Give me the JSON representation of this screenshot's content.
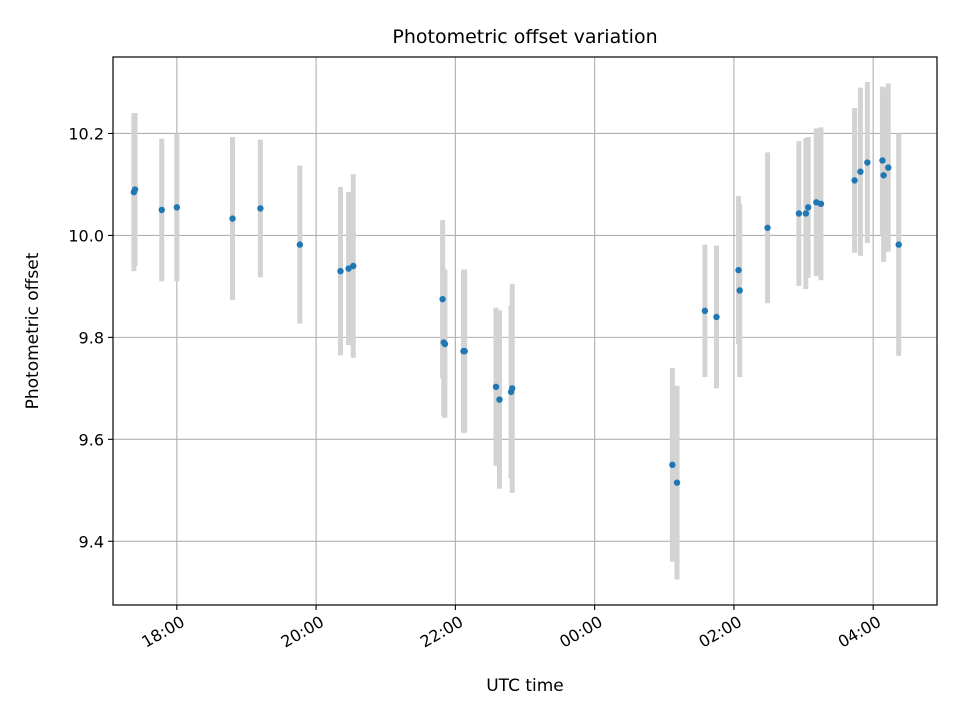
{
  "chart_data": {
    "type": "scatter",
    "title": "Photometric offset variation",
    "xlabel": "UTC time",
    "ylabel": "Photometric offset",
    "x_axis_kind": "time",
    "xlim": [
      "17:05",
      "04:55"
    ],
    "ylim": [
      9.275,
      10.35
    ],
    "grid": true,
    "x_ticks": [
      "18:00",
      "20:00",
      "22:00",
      "00:00",
      "02:00",
      "04:00"
    ],
    "y_ticks": [
      9.4,
      9.6,
      9.8,
      10.0,
      10.2
    ],
    "y_tick_labels": [
      "9.4",
      "9.6",
      "9.8",
      "10.0",
      "10.2"
    ],
    "errorbar_color": "#d3d3d3",
    "marker_color": "#1f77b4",
    "series": [
      {
        "points": [
          {
            "x": "17:23",
            "y": 10.085,
            "err": 0.155
          },
          {
            "x": "17:24",
            "y": 10.09,
            "err": 0.15
          },
          {
            "x": "17:47",
            "y": 10.05,
            "err": 0.14
          },
          {
            "x": "17:60",
            "y": 10.055,
            "err": 0.145
          },
          {
            "x": "18:48",
            "y": 10.033,
            "err": 0.16
          },
          {
            "x": "19:12",
            "y": 10.053,
            "err": 0.135
          },
          {
            "x": "19:46",
            "y": 9.982,
            "err": 0.155
          },
          {
            "x": "20:21",
            "y": 9.93,
            "err": 0.165
          },
          {
            "x": "20:28",
            "y": 9.935,
            "err": 0.15
          },
          {
            "x": "20:32",
            "y": 9.94,
            "err": 0.18
          },
          {
            "x": "21:49",
            "y": 9.875,
            "err": 0.155
          },
          {
            "x": "21:50",
            "y": 9.79,
            "err": 0.145
          },
          {
            "x": "21:51",
            "y": 9.787,
            "err": 0.145
          },
          {
            "x": "22:07",
            "y": 9.773,
            "err": 0.16
          },
          {
            "x": "22:08",
            "y": 9.773,
            "err": 0.16
          },
          {
            "x": "22:35",
            "y": 9.703,
            "err": 0.155
          },
          {
            "x": "22:38",
            "y": 9.678,
            "err": 0.175
          },
          {
            "x": "22:48",
            "y": 9.693,
            "err": 0.17
          },
          {
            "x": "22:49",
            "y": 9.7,
            "err": 0.205
          },
          {
            "x": "01:07",
            "y": 9.55,
            "err": 0.19
          },
          {
            "x": "01:11",
            "y": 9.515,
            "err": 0.19
          },
          {
            "x": "01:35",
            "y": 9.852,
            "err": 0.13
          },
          {
            "x": "01:45",
            "y": 9.84,
            "err": 0.14
          },
          {
            "x": "02:04",
            "y": 9.932,
            "err": 0.145
          },
          {
            "x": "02:05",
            "y": 9.892,
            "err": 0.17
          },
          {
            "x": "02:29",
            "y": 10.015,
            "err": 0.148
          },
          {
            "x": "02:56",
            "y": 10.043,
            "err": 0.142
          },
          {
            "x": "03:02",
            "y": 10.043,
            "err": 0.148
          },
          {
            "x": "03:04",
            "y": 10.055,
            "err": 0.138
          },
          {
            "x": "03:11",
            "y": 10.065,
            "err": 0.145
          },
          {
            "x": "03:15",
            "y": 10.062,
            "err": 0.15
          },
          {
            "x": "03:44",
            "y": 10.108,
            "err": 0.142
          },
          {
            "x": "03:49",
            "y": 10.125,
            "err": 0.165
          },
          {
            "x": "03:55",
            "y": 10.143,
            "err": 0.158
          },
          {
            "x": "04:08",
            "y": 10.147,
            "err": 0.145
          },
          {
            "x": "04:09",
            "y": 10.118,
            "err": 0.17
          },
          {
            "x": "04:13",
            "y": 10.133,
            "err": 0.165
          },
          {
            "x": "04:22",
            "y": 9.982,
            "err": 0.218
          }
        ]
      }
    ]
  }
}
